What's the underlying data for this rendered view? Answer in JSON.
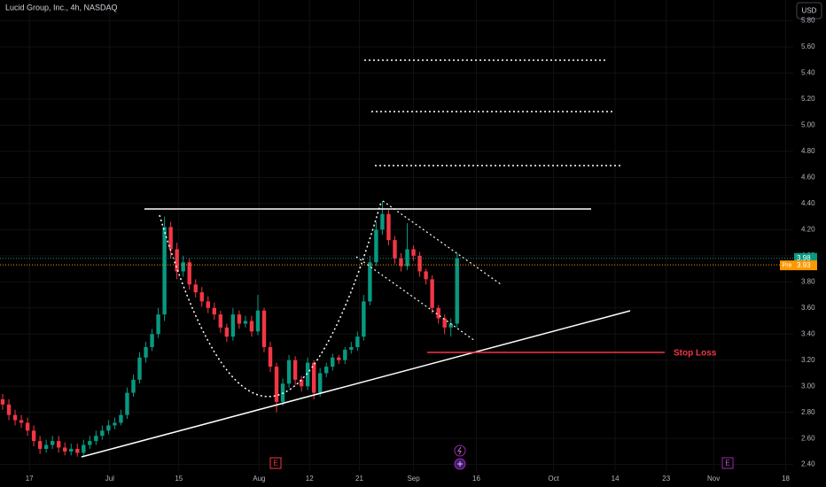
{
  "chart_data": {
    "type": "candlestick",
    "title": "Lucid Group, Inc., 4h, NASDAQ",
    "currency": "USD",
    "up_color": "#089981",
    "down_color": "#f23645",
    "grid": true,
    "x": [
      0,
      1,
      2,
      3,
      4,
      5,
      6,
      7,
      8,
      9,
      10,
      11,
      12,
      13,
      14,
      15,
      16,
      17,
      18,
      19,
      20,
      21,
      22,
      23,
      24,
      25,
      26,
      27,
      28,
      29,
      30,
      31,
      32,
      33,
      34,
      35,
      36,
      37,
      38,
      39,
      40,
      41,
      42,
      43,
      44,
      45,
      46,
      47,
      48,
      49,
      50,
      51,
      52,
      53,
      54,
      55,
      56,
      57,
      58,
      59,
      60,
      61,
      62,
      63,
      64,
      65,
      66,
      67,
      68,
      69,
      70,
      71,
      72,
      73
    ],
    "open": [
      2.9,
      2.86,
      2.78,
      2.74,
      2.72,
      2.66,
      2.58,
      2.52,
      2.55,
      2.58,
      2.53,
      2.5,
      2.52,
      2.49,
      2.55,
      2.58,
      2.62,
      2.66,
      2.7,
      2.72,
      2.78,
      2.95,
      3.05,
      3.22,
      3.3,
      3.4,
      3.55,
      4.22,
      4.05,
      3.88,
      3.95,
      3.78,
      3.72,
      3.65,
      3.6,
      3.55,
      3.45,
      3.38,
      3.55,
      3.48,
      3.5,
      3.42,
      3.58,
      3.3,
      3.15,
      2.88,
      3.02,
      3.2,
      3.05,
      3.0,
      3.18,
      2.95,
      3.1,
      3.15,
      3.22,
      3.2,
      3.28,
      3.3,
      3.38,
      3.65,
      3.95,
      4.2,
      4.32,
      4.12,
      3.98,
      3.92,
      4.05,
      4.0,
      3.88,
      3.82,
      3.6,
      3.52,
      3.45,
      3.48
    ],
    "high": [
      2.94,
      2.9,
      2.82,
      2.78,
      2.76,
      2.7,
      2.62,
      2.59,
      2.62,
      2.62,
      2.57,
      2.56,
      2.56,
      2.59,
      2.62,
      2.66,
      2.7,
      2.74,
      2.76,
      2.82,
      2.99,
      3.09,
      3.26,
      3.34,
      3.44,
      3.6,
      4.3,
      4.26,
      4.1,
      4.0,
      3.98,
      3.82,
      3.76,
      3.69,
      3.64,
      3.58,
      3.48,
      3.6,
      3.58,
      3.54,
      3.54,
      3.7,
      3.6,
      3.34,
      3.18,
      3.06,
      3.24,
      3.23,
      3.08,
      3.22,
      3.2,
      3.14,
      3.18,
      3.25,
      3.24,
      3.3,
      3.34,
      3.42,
      3.7,
      4.0,
      4.26,
      4.42,
      4.35,
      4.15,
      4.02,
      4.25,
      4.08,
      4.03,
      3.9,
      3.85,
      3.62,
      3.55,
      3.52,
      4.02
    ],
    "low": [
      2.82,
      2.74,
      2.7,
      2.68,
      2.62,
      2.54,
      2.48,
      2.49,
      2.52,
      2.49,
      2.47,
      2.47,
      2.46,
      2.46,
      2.52,
      2.55,
      2.59,
      2.63,
      2.67,
      2.7,
      2.75,
      2.92,
      3.02,
      3.18,
      3.27,
      3.37,
      3.5,
      3.98,
      3.82,
      3.84,
      3.74,
      3.68,
      3.61,
      3.56,
      3.51,
      3.41,
      3.34,
      3.35,
      3.44,
      3.45,
      3.38,
      3.39,
      3.26,
      3.11,
      2.8,
      2.85,
      2.99,
      3.01,
      2.96,
      2.97,
      2.9,
      2.92,
      3.07,
      3.12,
      3.17,
      3.17,
      3.25,
      3.27,
      3.35,
      3.62,
      3.92,
      4.16,
      4.08,
      3.94,
      3.88,
      3.89,
      3.96,
      3.84,
      3.78,
      3.56,
      3.48,
      3.4,
      3.38,
      3.45
    ],
    "close": [
      2.86,
      2.78,
      2.74,
      2.72,
      2.66,
      2.58,
      2.52,
      2.55,
      2.58,
      2.53,
      2.5,
      2.52,
      2.49,
      2.55,
      2.58,
      2.62,
      2.66,
      2.7,
      2.72,
      2.78,
      2.95,
      3.05,
      3.22,
      3.3,
      3.4,
      3.55,
      4.22,
      4.05,
      3.88,
      3.95,
      3.78,
      3.72,
      3.65,
      3.6,
      3.55,
      3.45,
      3.38,
      3.55,
      3.48,
      3.5,
      3.42,
      3.58,
      3.3,
      3.15,
      2.88,
      3.02,
      3.2,
      3.05,
      3.0,
      3.18,
      2.95,
      3.1,
      3.15,
      3.22,
      3.2,
      3.28,
      3.3,
      3.38,
      3.65,
      3.95,
      4.2,
      4.32,
      4.12,
      3.98,
      3.92,
      4.05,
      4.0,
      3.88,
      3.82,
      3.6,
      3.52,
      3.45,
      3.48,
      3.98
    ],
    "xlim": [
      0,
      127
    ],
    "xticks": [
      {
        "value": 4.3,
        "label": "17"
      },
      {
        "value": 17.2,
        "label": "Jul"
      },
      {
        "value": 28.3,
        "label": "15"
      },
      {
        "value": 41.2,
        "label": "Aug"
      },
      {
        "value": 49.3,
        "label": "12"
      },
      {
        "value": 57.3,
        "label": "21"
      },
      {
        "value": 66.0,
        "label": "Sep"
      },
      {
        "value": 76.1,
        "label": "16"
      },
      {
        "value": 88.5,
        "label": "Oct"
      },
      {
        "value": 98.4,
        "label": "14"
      },
      {
        "value": 106.6,
        "label": "23"
      },
      {
        "value": 114.2,
        "label": "Nov"
      },
      {
        "value": 125.8,
        "label": "18"
      }
    ],
    "ylim": [
      2.35,
      5.96
    ],
    "yticks": [
      {
        "value": 2.4,
        "label": "2.40"
      },
      {
        "value": 2.6,
        "label": "2.60"
      },
      {
        "value": 2.8,
        "label": "2.80"
      },
      {
        "value": 3.0,
        "label": "3.00"
      },
      {
        "value": 3.2,
        "label": "3.20"
      },
      {
        "value": 3.4,
        "label": "3.40"
      },
      {
        "value": 3.6,
        "label": "3.60"
      },
      {
        "value": 3.8,
        "label": "3.80"
      },
      {
        "value": 4.0,
        "label": "4.00"
      },
      {
        "value": 4.2,
        "label": "4.20"
      },
      {
        "value": 4.4,
        "label": "4.40"
      },
      {
        "value": 4.6,
        "label": "4.60"
      },
      {
        "value": 4.8,
        "label": "4.80"
      },
      {
        "value": 5.0,
        "label": "5.00"
      },
      {
        "value": 5.2,
        "label": "5.20"
      },
      {
        "value": 5.4,
        "label": "5.40"
      },
      {
        "value": 5.6,
        "label": "5.60"
      },
      {
        "value": 5.8,
        "label": "5.80"
      }
    ],
    "last_price": 3.98,
    "pre_market_price": 3.93,
    "pre_market_label": "Pre",
    "annotations": [
      "Stop Loss"
    ],
    "events": [
      "E",
      "E"
    ]
  }
}
